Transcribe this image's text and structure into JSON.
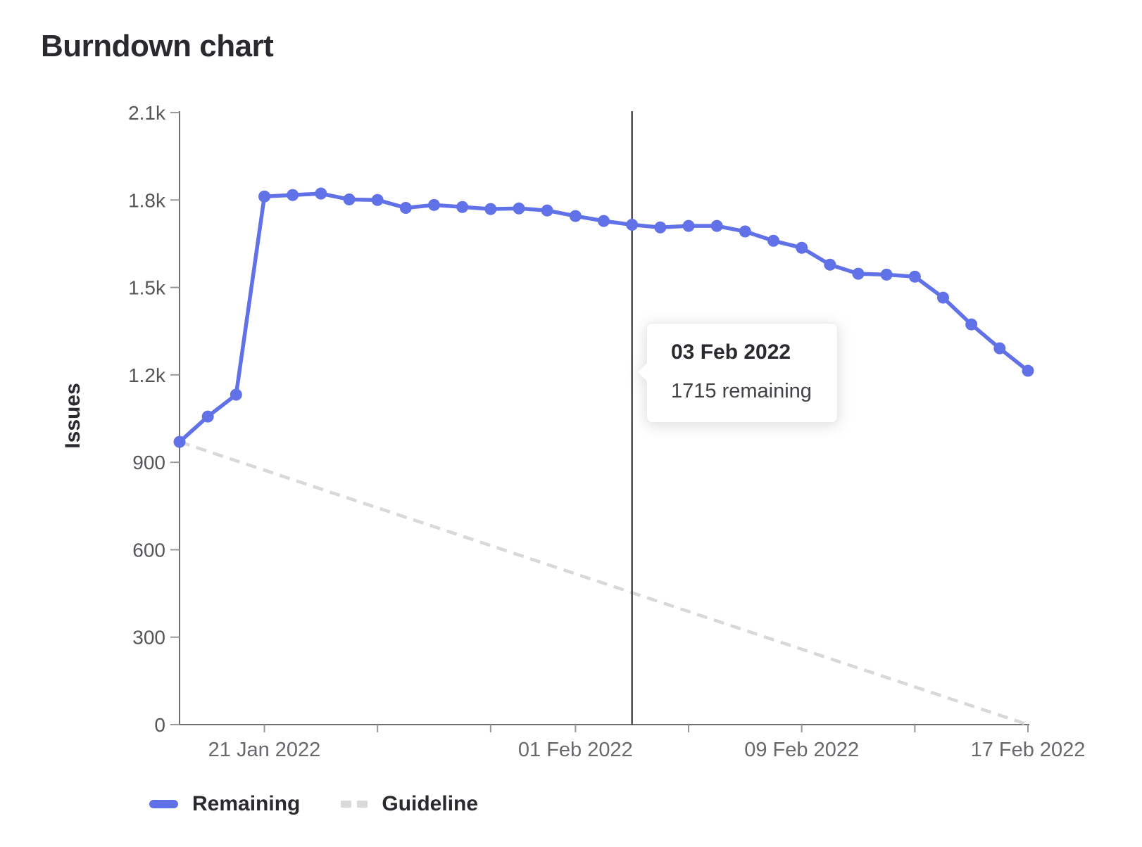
{
  "chart_data": {
    "type": "line",
    "title": "Burndown chart",
    "ylabel": "Issues",
    "xlabel": "",
    "ylim": [
      0,
      2100
    ],
    "grid": false,
    "legend_position": "bottom-left",
    "y_ticks": [
      {
        "value": 0,
        "label": "0"
      },
      {
        "value": 300,
        "label": "300"
      },
      {
        "value": 600,
        "label": "600"
      },
      {
        "value": 900,
        "label": "900"
      },
      {
        "value": 1200,
        "label": "1.2k"
      },
      {
        "value": 1500,
        "label": "1.5k"
      },
      {
        "value": 1800,
        "label": "1.8k"
      },
      {
        "value": 2100,
        "label": "2.1k"
      }
    ],
    "x": [
      "18 Jan 2022",
      "19 Jan 2022",
      "20 Jan 2022",
      "21 Jan 2022",
      "22 Jan 2022",
      "23 Jan 2022",
      "24 Jan 2022",
      "25 Jan 2022",
      "26 Jan 2022",
      "27 Jan 2022",
      "28 Jan 2022",
      "29 Jan 2022",
      "30 Jan 2022",
      "31 Jan 2022",
      "01 Feb 2022",
      "02 Feb 2022",
      "03 Feb 2022",
      "04 Feb 2022",
      "05 Feb 2022",
      "06 Feb 2022",
      "07 Feb 2022",
      "08 Feb 2022",
      "09 Feb 2022",
      "10 Feb 2022",
      "11 Feb 2022",
      "12 Feb 2022",
      "13 Feb 2022",
      "14 Feb 2022",
      "15 Feb 2022",
      "16 Feb 2022",
      "17 Feb 2022"
    ],
    "x_ticks": [
      {
        "index": 3,
        "label": "21 Jan 2022"
      },
      {
        "index": 7,
        "label": ""
      },
      {
        "index": 11,
        "label": ""
      },
      {
        "index": 14,
        "label": "01 Feb 2022"
      },
      {
        "index": 18,
        "label": ""
      },
      {
        "index": 22,
        "label": "09 Feb 2022"
      },
      {
        "index": 26,
        "label": ""
      },
      {
        "index": 30,
        "label": "17 Feb 2022"
      }
    ],
    "series": [
      {
        "name": "Remaining",
        "style": "solid",
        "color": "#6171e8",
        "values": [
          970,
          1057,
          1132,
          1812,
          1817,
          1822,
          1802,
          1800,
          1773,
          1783,
          1776,
          1769,
          1771,
          1764,
          1745,
          1728,
          1715,
          1706,
          1711,
          1711,
          1692,
          1660,
          1636,
          1578,
          1547,
          1544,
          1537,
          1465,
          1373,
          1291,
          1214
        ]
      },
      {
        "name": "Guideline",
        "style": "dashed",
        "color": "#d8d8d8",
        "points": [
          {
            "index": 0,
            "value": 970
          },
          {
            "index": 30,
            "value": 0
          }
        ]
      }
    ],
    "marker": {
      "index": 16,
      "color": "#47474c"
    },
    "tooltip": {
      "date": "03 Feb 2022",
      "text": "1715 remaining"
    }
  },
  "colors": {
    "axis": "#6e6e73",
    "tick": "#97979c",
    "accent_blue": "#6171e8",
    "guideline_gray": "#d8d8d8",
    "marker_line": "#47474c"
  }
}
